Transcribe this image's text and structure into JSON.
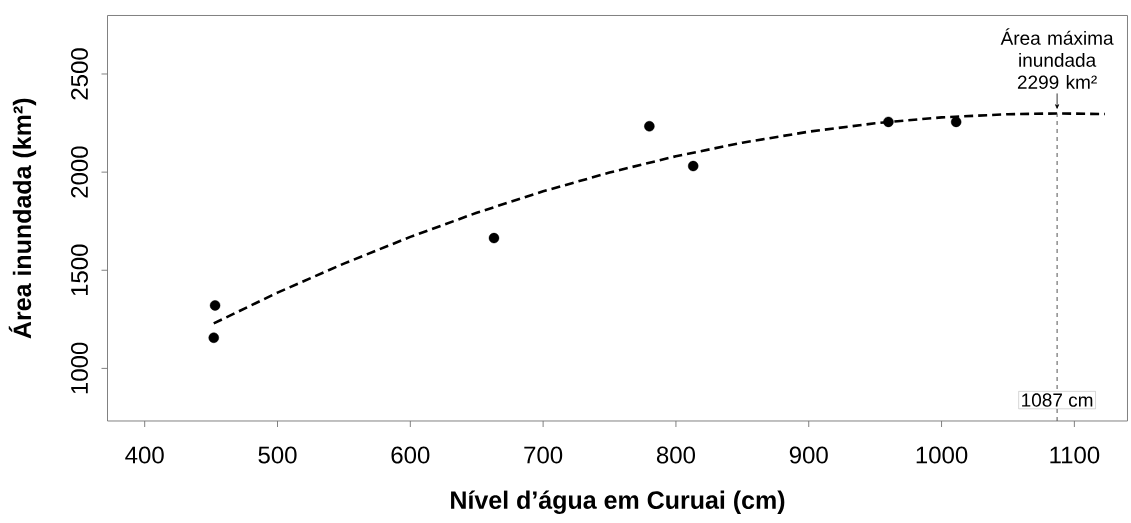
{
  "chart_data": {
    "type": "scatter",
    "xlabel": "Nível d’água em Curuai (cm)",
    "ylabel": "Área inundada (km²)",
    "xlim": [
      372,
      1140
    ],
    "ylim": [
      732,
      2798
    ],
    "xticks": [
      400,
      500,
      600,
      700,
      800,
      900,
      1000,
      1100
    ],
    "yticks": [
      1000,
      1500,
      2000,
      2500
    ],
    "series": [
      {
        "color": "#000000",
        "marker": "circle",
        "x": [
          452,
          453,
          663,
          780,
          813,
          960,
          1011
        ],
        "values": [
          1156,
          1321,
          1664,
          2234,
          2031,
          2256,
          2256
        ]
      },
      {
        "type": "line",
        "color": "#000000",
        "line_style": "dashed",
        "marker": "none",
        "x": [
          452,
          500,
          550,
          600,
          650,
          700,
          750,
          800,
          850,
          900,
          950,
          1000,
          1050,
          1087,
          1123
        ],
        "values": [
          1229,
          1386,
          1534,
          1670,
          1793,
          1902,
          1998,
          2081,
          2150,
          2206,
          2249,
          2279,
          2295,
          2299,
          2296
        ]
      }
    ],
    "ref_lines": [
      {
        "axis": "x",
        "value": 1087,
        "label": "1087 cm",
        "color": "#555555",
        "line_style": "dashed"
      }
    ],
    "annotations": [
      {
        "text": "Área máxima inundada 2299 km²",
        "x": 1087,
        "y": 2299
      }
    ]
  }
}
